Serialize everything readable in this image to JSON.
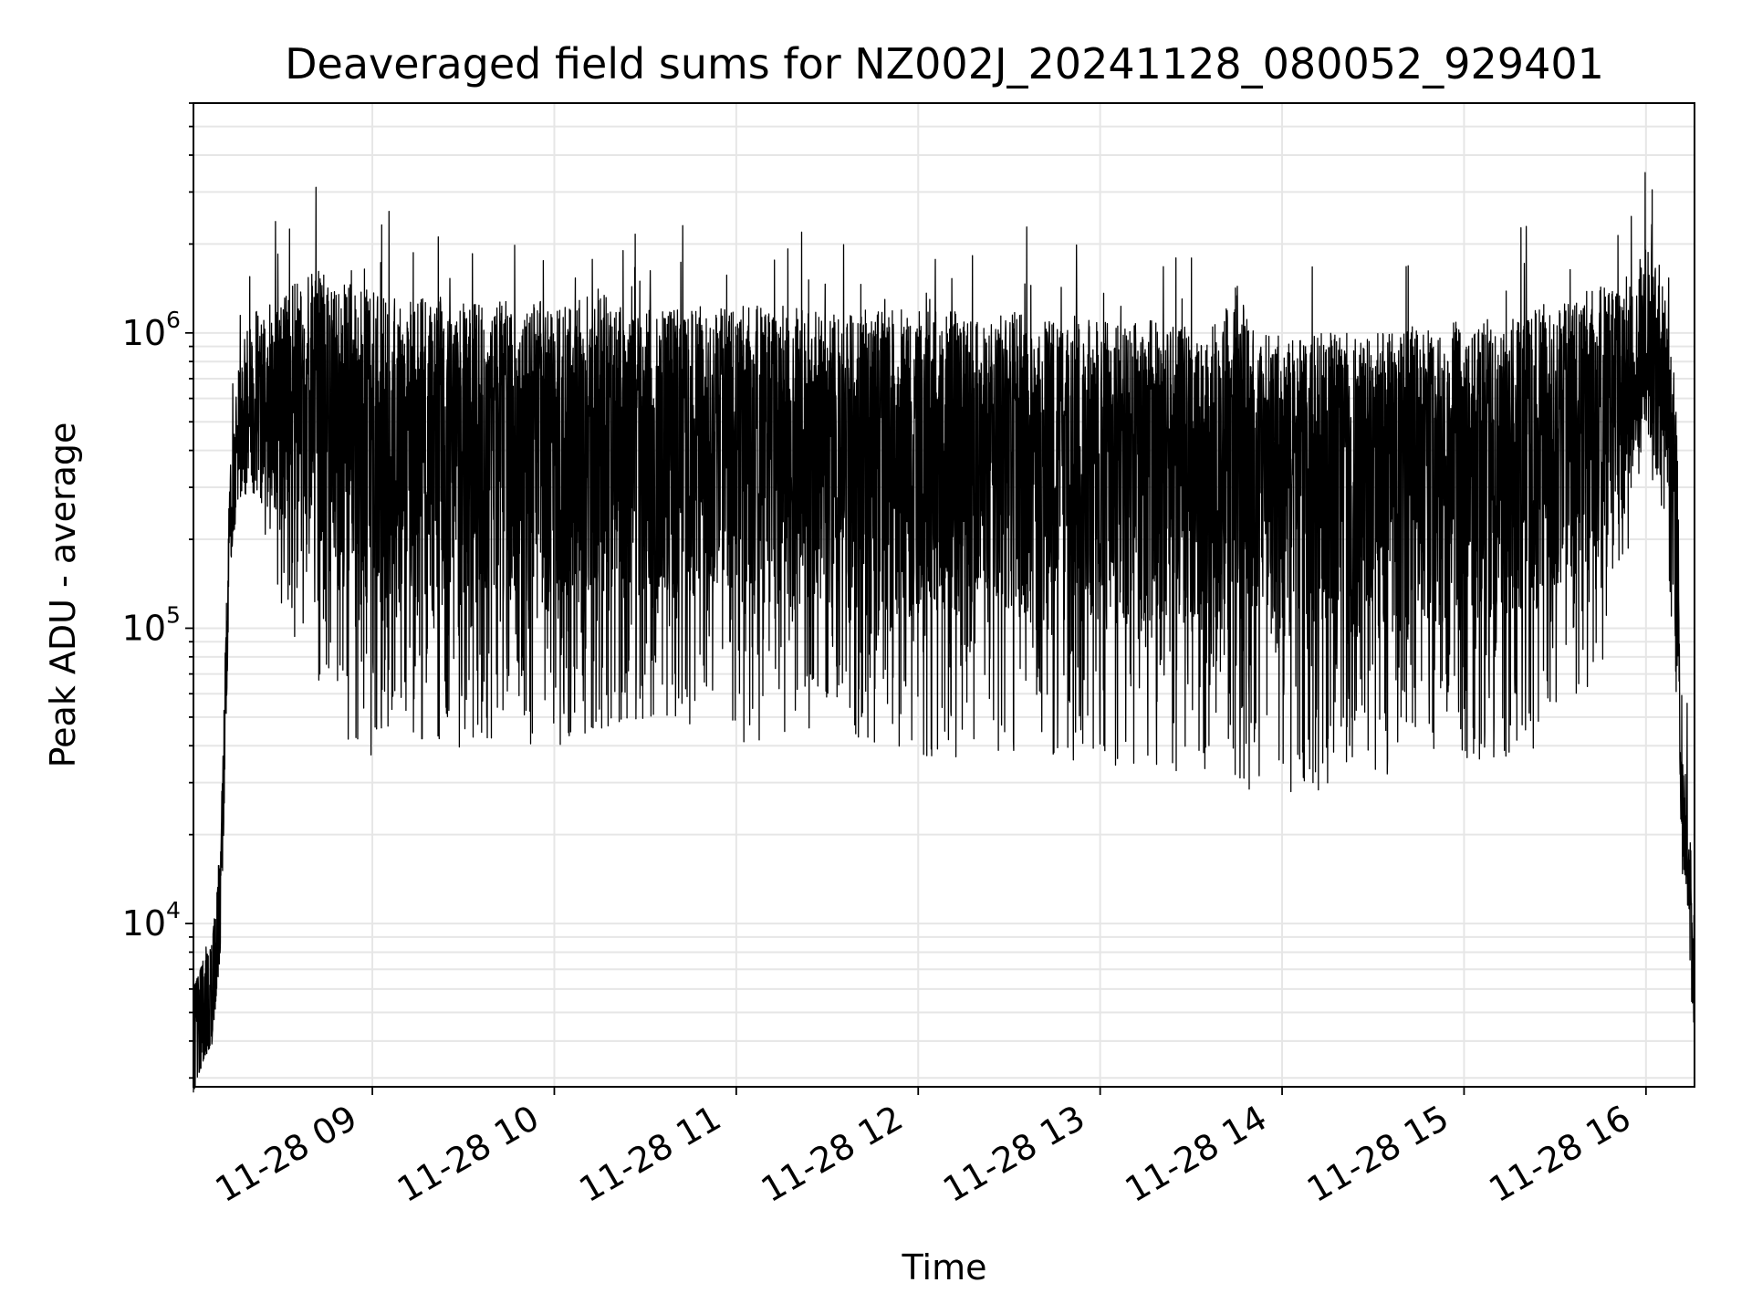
{
  "chart_data": {
    "type": "line",
    "title": "Deaveraged field sums for NZ002J_20241128_080052_929401",
    "xlabel": "Time",
    "ylabel": "Peak ADU - average",
    "y_scale": "log",
    "xlim": [
      "2024-11-28 08:01",
      "2024-11-28 16:16"
    ],
    "ylim": [
      2800,
      6000000
    ],
    "x_tick_labels": [
      "11-28 09",
      "11-28 10",
      "11-28 11",
      "11-28 12",
      "11-28 13",
      "11-28 14",
      "11-28 15",
      "11-28 16"
    ],
    "x_ticks": [
      "2024-11-28 09:00",
      "2024-11-28 10:00",
      "2024-11-28 11:00",
      "2024-11-28 12:00",
      "2024-11-28 13:00",
      "2024-11-28 14:00",
      "2024-11-28 15:00",
      "2024-11-28 16:00"
    ],
    "y_ticks": [
      10000,
      100000,
      1000000
    ],
    "y_tick_labels": [
      {
        "base": "10",
        "exp": "4"
      },
      {
        "base": "10",
        "exp": "5"
      },
      {
        "base": "10",
        "exp": "6"
      }
    ],
    "grid": true,
    "line_color": "#000000",
    "series": [
      {
        "x": [
          "08:01",
          "08:04",
          "08:07",
          "08:10",
          "08:13",
          "08:16",
          "08:19",
          "08:22",
          "08:25",
          "08:28",
          "08:31",
          "08:34",
          "08:37",
          "08:40",
          "08:43",
          "08:46",
          "08:49",
          "08:52",
          "08:55",
          "08:58",
          "09:10",
          "09:20",
          "09:30",
          "09:40",
          "09:50",
          "09:52",
          "10:00",
          "10:10",
          "10:13",
          "10:20",
          "10:30",
          "10:40",
          "10:50",
          "10:58",
          "11:00",
          "11:10",
          "11:20",
          "11:30",
          "11:40",
          "11:50",
          "12:00",
          "12:10",
          "12:20",
          "12:30",
          "12:40",
          "12:50",
          "13:00",
          "13:10",
          "13:20",
          "13:30",
          "13:40",
          "13:45",
          "13:50",
          "13:55",
          "14:00",
          "14:10",
          "14:20",
          "14:30",
          "14:40",
          "14:50",
          "15:00",
          "15:10",
          "15:20",
          "15:30",
          "15:40",
          "15:50",
          "15:55",
          "16:00",
          "16:02",
          "16:05",
          "16:08",
          "16:10",
          "16:12",
          "16:14",
          "16:16"
        ],
        "y": [
          6000,
          8000,
          9000,
          20000,
          400000,
          900000,
          1100000,
          1200000,
          1300000,
          1250000,
          1400000,
          1500000,
          1500000,
          1600000,
          1700000,
          1400000,
          1450000,
          1500000,
          1450000,
          1400000,
          1400000,
          1350000,
          1300000,
          1300000,
          1250000,
          1300000,
          1250000,
          1300000,
          1500000,
          1250000,
          1200000,
          1200000,
          1250000,
          1300000,
          1250000,
          1250000,
          1250000,
          1200000,
          1200000,
          1200000,
          1200000,
          1200000,
          1150000,
          1150000,
          1150000,
          1150000,
          1100000,
          1100000,
          1100000,
          1050000,
          1100000,
          1500000,
          1000000,
          1000000,
          1000000,
          1000000,
          1000000,
          1000000,
          1050000,
          1050000,
          1100000,
          1100000,
          1200000,
          1300000,
          1400000,
          1500000,
          1600000,
          2000000,
          2500000,
          1600000,
          1200000,
          600000,
          50000,
          30000,
          10000
        ],
        "lower": [
          6000,
          7000,
          8000,
          15000,
          300000,
          400000,
          300000,
          250000,
          200000,
          150000,
          100000,
          90000,
          80000,
          70000,
          60000,
          50000,
          45000,
          40000,
          35000,
          35000,
          45000,
          40000,
          35000,
          40000,
          45000,
          40000,
          40000,
          40000,
          45000,
          45000,
          45000,
          45000,
          45000,
          45000,
          40000,
          40000,
          40000,
          40000,
          38000,
          38000,
          35000,
          36000,
          38000,
          38000,
          38000,
          36000,
          32000,
          33000,
          33000,
          31000,
          30000,
          30000,
          28000,
          27000,
          26000,
          28000,
          29000,
          31000,
          32000,
          33000,
          34000,
          35000,
          36000,
          40000,
          60000,
          90000,
          200000,
          400000,
          300000,
          200000,
          100000,
          30000,
          20000,
          12000,
          6000
        ]
      }
    ]
  }
}
